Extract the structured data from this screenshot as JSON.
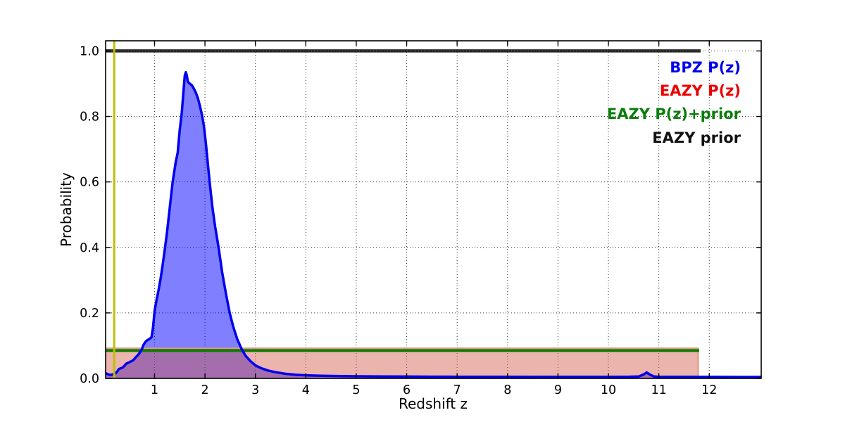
{
  "figure": {
    "background": "#ffffff"
  },
  "chart_data": {
    "type": "line",
    "title": "",
    "xlabel": "Redshift z",
    "ylabel": "Probability",
    "xlim": [
      0.03,
      13.03
    ],
    "ylim": [
      0,
      1.031
    ],
    "grid": true,
    "grid_style": "dotted",
    "x_ticks": [
      1,
      2,
      3,
      4,
      5,
      6,
      7,
      8,
      9,
      10,
      11,
      12
    ],
    "x_tick_labels": [
      "1",
      "2",
      "3",
      "4",
      "5",
      "6",
      "7",
      "8",
      "9",
      "10",
      "11",
      "12"
    ],
    "y_ticks": [
      0.0,
      0.2,
      0.4,
      0.6,
      0.8,
      1.0
    ],
    "y_tick_labels": [
      "0.0",
      "0.2",
      "0.4",
      "0.6",
      "0.8",
      "1.0"
    ],
    "legend": {
      "position": "upper right",
      "entries": [
        {
          "label": "BPZ P(z)",
          "color": "#0000ee"
        },
        {
          "label": "EAZY P(z)",
          "color": "#ee0000"
        },
        {
          "label": "EAZY P(z)+prior",
          "color": "#0a7d0a"
        },
        {
          "label": "EAZY prior",
          "color": "#111111"
        }
      ]
    },
    "series": [
      {
        "name": "BPZ P(z)",
        "kind": "filled_curve",
        "line_color": "#0000ee",
        "line_width": 3.5,
        "fill_color": "rgba(0,0,255,0.5)",
        "points": [
          [
            0.03,
            0.016
          ],
          [
            0.07,
            0.013
          ],
          [
            0.11,
            0.011
          ],
          [
            0.15,
            0.011
          ],
          [
            0.19,
            0.013
          ],
          [
            0.23,
            0.016
          ],
          [
            0.26,
            0.021
          ],
          [
            0.29,
            0.028
          ],
          [
            0.33,
            0.031
          ],
          [
            0.37,
            0.033
          ],
          [
            0.4,
            0.038
          ],
          [
            0.44,
            0.045
          ],
          [
            0.48,
            0.048
          ],
          [
            0.52,
            0.051
          ],
          [
            0.56,
            0.054
          ],
          [
            0.6,
            0.059
          ],
          [
            0.63,
            0.065
          ],
          [
            0.67,
            0.071
          ],
          [
            0.71,
            0.079
          ],
          [
            0.75,
            0.09
          ],
          [
            0.78,
            0.102
          ],
          [
            0.82,
            0.112
          ],
          [
            0.86,
            0.117
          ],
          [
            0.9,
            0.12
          ],
          [
            0.94,
            0.126
          ],
          [
            0.97,
            0.155
          ],
          [
            1.0,
            0.205
          ],
          [
            1.04,
            0.24
          ],
          [
            1.08,
            0.27
          ],
          [
            1.12,
            0.305
          ],
          [
            1.16,
            0.345
          ],
          [
            1.2,
            0.39
          ],
          [
            1.25,
            0.45
          ],
          [
            1.3,
            0.52
          ],
          [
            1.36,
            0.6
          ],
          [
            1.42,
            0.66
          ],
          [
            1.46,
            0.69
          ],
          [
            1.5,
            0.76
          ],
          [
            1.54,
            0.81
          ],
          [
            1.57,
            0.87
          ],
          [
            1.6,
            0.925
          ],
          [
            1.62,
            0.935
          ],
          [
            1.64,
            0.925
          ],
          [
            1.66,
            0.906
          ],
          [
            1.7,
            0.9
          ],
          [
            1.74,
            0.895
          ],
          [
            1.78,
            0.885
          ],
          [
            1.82,
            0.872
          ],
          [
            1.86,
            0.855
          ],
          [
            1.9,
            0.832
          ],
          [
            1.94,
            0.805
          ],
          [
            1.98,
            0.77
          ],
          [
            2.02,
            0.715
          ],
          [
            2.06,
            0.65
          ],
          [
            2.1,
            0.59
          ],
          [
            2.15,
            0.52
          ],
          [
            2.2,
            0.465
          ],
          [
            2.27,
            0.4
          ],
          [
            2.34,
            0.325
          ],
          [
            2.42,
            0.255
          ],
          [
            2.49,
            0.2
          ],
          [
            2.56,
            0.158
          ],
          [
            2.64,
            0.12
          ],
          [
            2.72,
            0.092
          ],
          [
            2.8,
            0.07
          ],
          [
            2.9,
            0.053
          ],
          [
            3.0,
            0.04
          ],
          [
            3.1,
            0.032
          ],
          [
            3.25,
            0.024
          ],
          [
            3.4,
            0.019
          ],
          [
            3.6,
            0.014
          ],
          [
            3.8,
            0.011
          ],
          [
            4.0,
            0.0095
          ],
          [
            4.3,
            0.008
          ],
          [
            4.7,
            0.007
          ],
          [
            5.0,
            0.0065
          ],
          [
            5.5,
            0.006
          ],
          [
            6.0,
            0.0055
          ],
          [
            6.5,
            0.0052
          ],
          [
            7.0,
            0.005
          ],
          [
            8.0,
            0.0048
          ],
          [
            9.0,
            0.0046
          ],
          [
            10.0,
            0.0045
          ],
          [
            10.4,
            0.0048
          ],
          [
            10.6,
            0.006
          ],
          [
            10.7,
            0.012
          ],
          [
            10.76,
            0.018
          ],
          [
            10.82,
            0.012
          ],
          [
            10.9,
            0.006
          ],
          [
            11.0,
            0.005
          ],
          [
            11.5,
            0.0045
          ],
          [
            12.0,
            0.0045
          ],
          [
            12.5,
            0.0044
          ],
          [
            13.03,
            0.0044
          ]
        ]
      },
      {
        "name": "EAZY P(z)",
        "kind": "filled_box",
        "fill_color": "rgba(210,88,70,0.45)",
        "edge_color": "#e49582",
        "edge_width": 2,
        "x_range": [
          0.03,
          11.78
        ],
        "top": 0.092
      },
      {
        "name": "EAZY P(z)+prior",
        "kind": "hline",
        "color": "#0b7c00",
        "width": 4,
        "y": 0.085,
        "x_range": [
          0.03,
          11.8
        ]
      },
      {
        "name": "EAZY prior",
        "kind": "hline",
        "color": "#262626",
        "width": 4.5,
        "y": 1.0,
        "x_range": [
          0.03,
          11.83
        ]
      },
      {
        "name": "redshift marker",
        "kind": "vline",
        "color": "#bfbf00",
        "width": 3,
        "x": 0.2
      }
    ]
  }
}
